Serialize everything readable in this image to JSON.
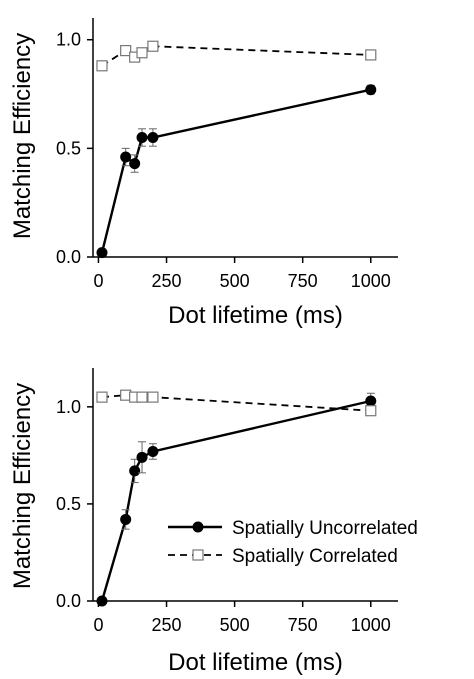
{
  "chart_data": [
    {
      "type": "line",
      "xlabel": "Dot lifetime (ms)",
      "ylabel": "Matching Efficiency",
      "xlim": [
        -20,
        1100
      ],
      "ylim": [
        0,
        1.1
      ],
      "xticks": [
        0,
        250,
        500,
        750,
        1000
      ],
      "xtick_labels": [
        "0",
        "250",
        "500",
        "750",
        "1000"
      ],
      "yticks": [
        0,
        0.5,
        1.0
      ],
      "ytick_labels": [
        "0.0",
        "0.5",
        "1.0"
      ],
      "grid": false,
      "series": [
        {
          "key": "uncorrelated",
          "style": "solid-filled-circle",
          "x": [
            13,
            100,
            133,
            160,
            200,
            1000
          ],
          "y": [
            0.02,
            0.46,
            0.43,
            0.55,
            0.55,
            0.77
          ],
          "err": [
            0,
            0.04,
            0.04,
            0.04,
            0.04,
            0.02
          ]
        },
        {
          "key": "correlated",
          "style": "dashed-open-square",
          "x": [
            13,
            100,
            133,
            160,
            200,
            1000
          ],
          "y": [
            0.88,
            0.95,
            0.92,
            0.94,
            0.97,
            0.93
          ],
          "err": [
            0,
            0,
            0,
            0,
            0.02,
            0
          ]
        }
      ]
    },
    {
      "type": "line",
      "xlabel": "Dot lifetime (ms)",
      "ylabel": "Matching Efficiency",
      "xlim": [
        -20,
        1100
      ],
      "ylim": [
        0,
        1.2
      ],
      "xticks": [
        0,
        250,
        500,
        750,
        1000
      ],
      "xtick_labels": [
        "0",
        "250",
        "500",
        "750",
        "1000"
      ],
      "yticks": [
        0,
        0.5,
        1.0
      ],
      "ytick_labels": [
        "0.0",
        "0.5",
        "1.0"
      ],
      "grid": false,
      "legend": {
        "placement": "bottom-right",
        "entries": [
          {
            "label": "Spatially Uncorrelated",
            "style": "solid-filled-circle"
          },
          {
            "label": "Spatially Correlated",
            "style": "dashed-open-square"
          }
        ]
      },
      "series": [
        {
          "key": "uncorrelated",
          "name": "Spatially Uncorrelated",
          "style": "solid-filled-circle",
          "x": [
            13,
            100,
            133,
            160,
            200,
            1000
          ],
          "y": [
            0.0,
            0.42,
            0.67,
            0.74,
            0.77,
            1.03
          ],
          "err": [
            0,
            0.05,
            0.06,
            0.08,
            0.04,
            0.04
          ]
        },
        {
          "key": "correlated",
          "name": "Spatially Correlated",
          "style": "dashed-open-square",
          "x": [
            13,
            100,
            133,
            160,
            200,
            1000
          ],
          "y": [
            1.05,
            1.06,
            1.05,
            1.05,
            1.05,
            0.98
          ],
          "err": [
            0,
            0,
            0,
            0,
            0,
            0
          ]
        }
      ]
    }
  ]
}
